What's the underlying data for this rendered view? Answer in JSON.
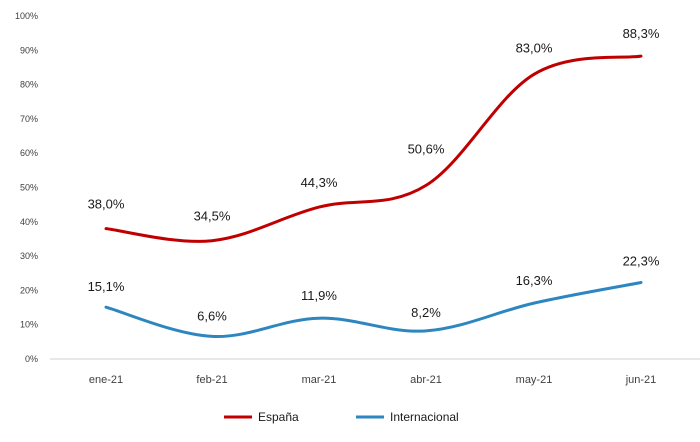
{
  "chart_data": {
    "type": "line",
    "categories": [
      "ene-21",
      "feb-21",
      "mar-21",
      "abr-21",
      "may-21",
      "jun-21"
    ],
    "series": [
      {
        "name": "España",
        "color": "#c00000",
        "values": [
          38.0,
          34.5,
          44.3,
          50.6,
          83.0,
          88.3
        ],
        "labels": [
          "38,0%",
          "34,5%",
          "44,3%",
          "50,6%",
          "83,0%",
          "88,3%"
        ]
      },
      {
        "name": "Internacional",
        "color": "#2e86c1",
        "values": [
          15.1,
          6.6,
          11.9,
          8.2,
          16.3,
          22.3
        ],
        "labels": [
          "15,1%",
          "6,6%",
          "11,9%",
          "8,2%",
          "16,3%",
          "22,3%"
        ]
      }
    ],
    "y_ticks": [
      "0%",
      "10%",
      "20%",
      "30%",
      "40%",
      "50%",
      "60%",
      "70%",
      "80%",
      "90%",
      "100%"
    ],
    "ylim": [
      0,
      100
    ],
    "grid": false,
    "legend_position": "bottom-center"
  }
}
